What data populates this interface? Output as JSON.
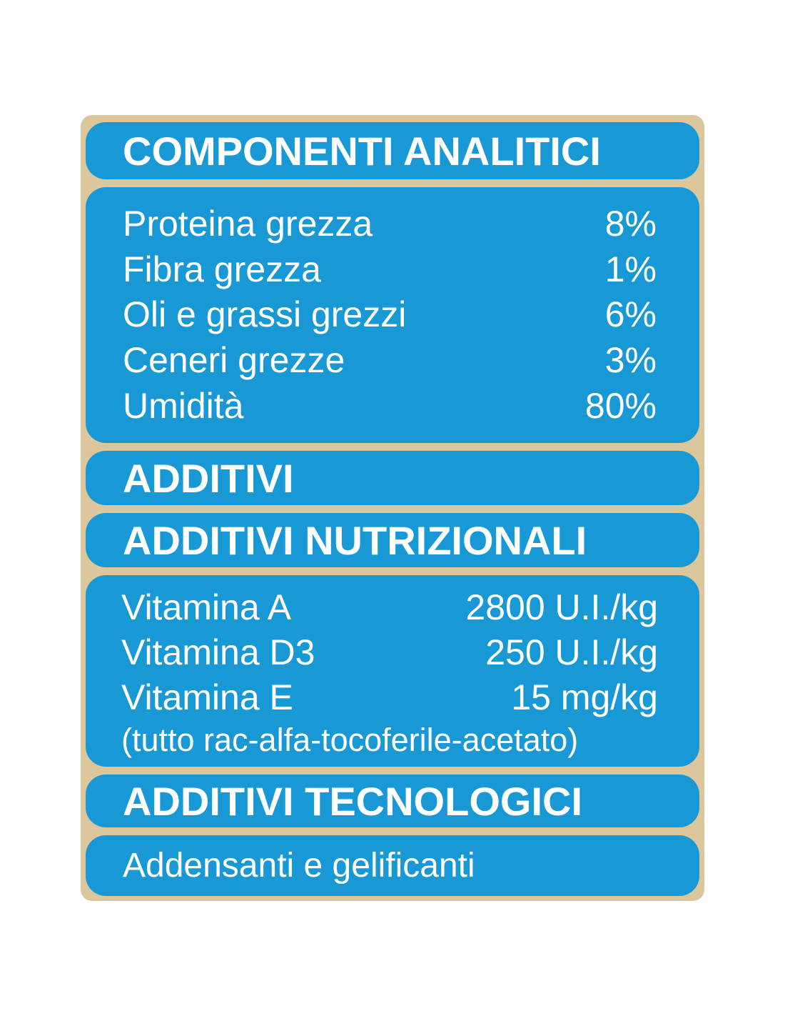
{
  "theme": {
    "bg": "#ffffff",
    "tan": "#dcc69b",
    "blue": "#1899d6",
    "txt": "#ffffff"
  },
  "sections": {
    "componenti": {
      "title": "COMPONENTI ANALITICI",
      "rows": [
        {
          "label": "Proteina grezza",
          "value": "8%"
        },
        {
          "label": "Fibra grezza",
          "value": "1%"
        },
        {
          "label": "Oli e grassi grezzi",
          "value": "6%"
        },
        {
          "label": "Ceneri grezze",
          "value": "3%"
        },
        {
          "label": "Umidità",
          "value": "80%"
        }
      ]
    },
    "additivi": {
      "title": "ADDITIVI"
    },
    "nutrizionali": {
      "title": "ADDITIVI NUTRIZIONALI",
      "rows": [
        {
          "label": "Vitamina A",
          "value": "2800 U.I./kg"
        },
        {
          "label": "Vitamina D3",
          "value": "250 U.I./kg"
        },
        {
          "label": "Vitamina E",
          "value": "15 mg/kg"
        }
      ],
      "note": "(tutto rac-alfa-tocoferile-acetato)"
    },
    "tecnologici": {
      "title": "ADDITIVI TECNOLOGICI",
      "content": "Addensanti e gelificanti"
    }
  }
}
